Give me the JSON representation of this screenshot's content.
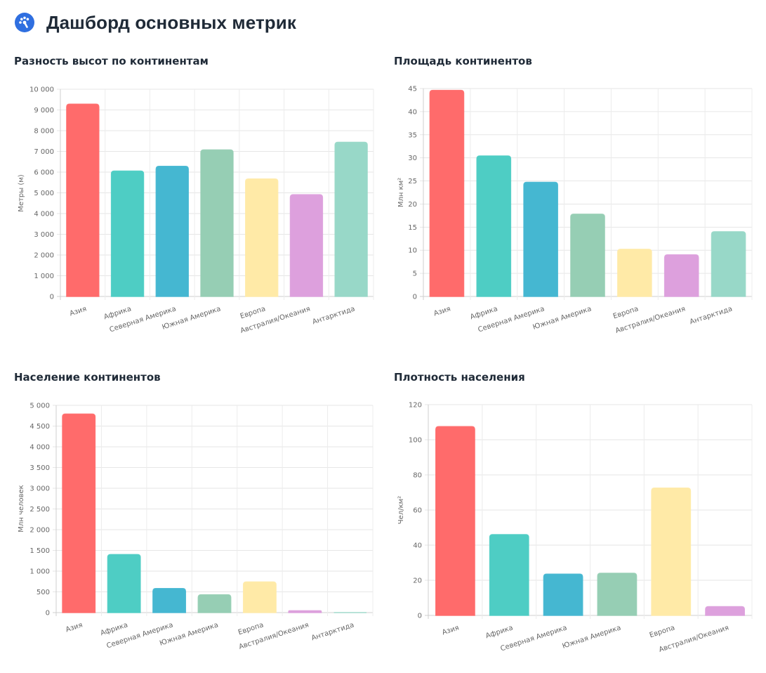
{
  "page": {
    "title": "Дашборд основных метрик",
    "icon": "dashboard-icon"
  },
  "colors": [
    "#ff6b6b",
    "#4ecdc4",
    "#45b7d1",
    "#96ceb4",
    "#ffeaa7",
    "#dda0dd",
    "#98d8c8"
  ],
  "chart_data": [
    {
      "type": "bar",
      "title": "Разность высот по континентам",
      "ylabel": "Метры (м)",
      "xlabel": "",
      "categories": [
        "Азия",
        "Африка",
        "Северная Америка",
        "Южная Америка",
        "Европа",
        "Австралия/Океания",
        "Антарктида"
      ],
      "values": [
        9280,
        6050,
        6280,
        7070,
        5670,
        4910,
        7440
      ],
      "ylim": [
        0,
        10000
      ],
      "yticks": [
        0,
        1000,
        2000,
        3000,
        4000,
        5000,
        6000,
        7000,
        8000,
        9000,
        10000
      ],
      "ytick_labels": [
        "0",
        "1 000",
        "2 000",
        "3 000",
        "4 000",
        "5 000",
        "6 000",
        "7 000",
        "8 000",
        "9 000",
        "10 000"
      ],
      "grid": true,
      "legend": "none"
    },
    {
      "type": "bar",
      "title": "Площадь континентов",
      "ylabel": "Млн км²",
      "xlabel": "",
      "categories": [
        "Азия",
        "Африка",
        "Северная Америка",
        "Южная Америка",
        "Европа",
        "Австралия/Океания",
        "Антарктида"
      ],
      "values": [
        44.6,
        30.4,
        24.7,
        17.8,
        10.2,
        9.0,
        14.0
      ],
      "ylim": [
        0,
        45
      ],
      "yticks": [
        0,
        5,
        10,
        15,
        20,
        25,
        30,
        35,
        40,
        45
      ],
      "ytick_labels": [
        "0",
        "5",
        "10",
        "15",
        "20",
        "25",
        "30",
        "35",
        "40",
        "45"
      ],
      "grid": true,
      "legend": "none"
    },
    {
      "type": "bar",
      "title": "Население континентов",
      "ylabel": "Млн человек",
      "xlabel": "",
      "categories": [
        "Азия",
        "Африка",
        "Северная Америка",
        "Южная Америка",
        "Европа",
        "Австралия/Океания",
        "Антарктида"
      ],
      "values": [
        4790,
        1400,
        580,
        430,
        740,
        45,
        0
      ],
      "ylim": [
        0,
        5000
      ],
      "yticks": [
        0,
        500,
        1000,
        1500,
        2000,
        2500,
        3000,
        3500,
        4000,
        4500,
        5000
      ],
      "ytick_labels": [
        "0",
        "500",
        "1 000",
        "1 500",
        "2 000",
        "2 500",
        "3 000",
        "3 500",
        "4 000",
        "4 500",
        "5 000"
      ],
      "grid": true,
      "legend": "none"
    },
    {
      "type": "bar",
      "title": "Плотность населения",
      "ylabel": "Чел/км²",
      "xlabel": "",
      "categories": [
        "Азия",
        "Африка",
        "Северная Америка",
        "Южная Америка",
        "Европа",
        "Австралия/Океания"
      ],
      "values": [
        107.5,
        46,
        23.5,
        24,
        72.5,
        5
      ],
      "ylim": [
        0,
        120
      ],
      "yticks": [
        0,
        20,
        40,
        60,
        80,
        100,
        120
      ],
      "ytick_labels": [
        "0",
        "20",
        "40",
        "60",
        "80",
        "100",
        "120"
      ],
      "grid": true,
      "legend": "none"
    }
  ]
}
